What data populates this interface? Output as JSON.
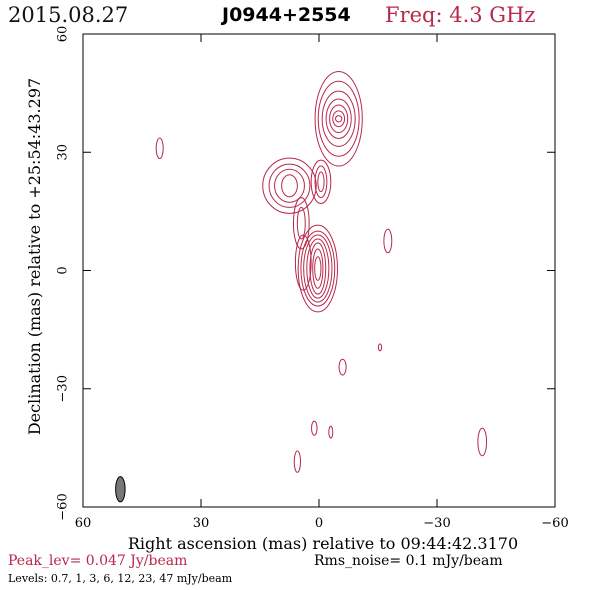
{
  "header": {
    "date": "2015.08.27",
    "source": "J0944+2554",
    "frequency": "Freq: 4.3 GHz"
  },
  "chart_data": {
    "type": "contour",
    "xlabel": "Right ascension (mas) relative to 09:44:42.3170",
    "ylabel": "Declination (mas) relative to +25:54:43.297",
    "xlim": [
      60,
      -60
    ],
    "ylim": [
      -60,
      60
    ],
    "x_ticks": [
      "60",
      "30",
      "0",
      "−30",
      "−60"
    ],
    "y_ticks": [
      "−60",
      "−30",
      "0",
      "30",
      "60"
    ],
    "contour_color": "#b8284a",
    "components": [
      {
        "x": 0.3,
        "y": 0.5,
        "rx": [
          0.8,
          1.3,
          2.0,
          2.8,
          3.6,
          4.3,
          5.0
        ],
        "ry": [
          3.0,
          5.0,
          6.5,
          7.5,
          8.5,
          9.5,
          11.0
        ]
      },
      {
        "x": -5.0,
        "y": 38.5,
        "rx": [
          0.8,
          1.5,
          2.3,
          3.2,
          4.2,
          5.2,
          6.0
        ],
        "ry": [
          0.8,
          2.0,
          3.5,
          5.0,
          7.0,
          9.5,
          12.0
        ]
      },
      {
        "x": 7.5,
        "y": 21.5,
        "rx": [
          2.0,
          3.8,
          5.2,
          6.8
        ],
        "ry": [
          2.8,
          4.2,
          5.5,
          7.0
        ]
      },
      {
        "x": -0.5,
        "y": 22.5,
        "rx": [
          0.8,
          1.5,
          2.5
        ],
        "ry": [
          2.5,
          4.0,
          5.5
        ]
      },
      {
        "x": 4.5,
        "y": 12.0,
        "rx": [
          1.0,
          2.0
        ],
        "ry": [
          4.0,
          6.5
        ]
      },
      {
        "x": 4.0,
        "y": 2.0,
        "rx": [
          2.0
        ],
        "ry": [
          7.0
        ]
      },
      {
        "x": 40.5,
        "y": 31.0,
        "rx": [
          0.9
        ],
        "ry": [
          2.6
        ]
      },
      {
        "x": -17.5,
        "y": 7.5,
        "rx": [
          1.0
        ],
        "ry": [
          3.0
        ]
      },
      {
        "x": -6.0,
        "y": -24.5,
        "rx": [
          0.9
        ],
        "ry": [
          2.0
        ]
      },
      {
        "x": -15.5,
        "y": -19.5,
        "rx": [
          0.4
        ],
        "ry": [
          0.9
        ]
      },
      {
        "x": 1.2,
        "y": -40.0,
        "rx": [
          0.7
        ],
        "ry": [
          1.8
        ]
      },
      {
        "x": -3.0,
        "y": -41.0,
        "rx": [
          0.5
        ],
        "ry": [
          1.5
        ]
      },
      {
        "x": 5.5,
        "y": -48.5,
        "rx": [
          0.8
        ],
        "ry": [
          2.7
        ]
      },
      {
        "x": -41.5,
        "y": -43.5,
        "rx": [
          1.1
        ],
        "ry": [
          3.5
        ]
      }
    ],
    "beam": {
      "x": 50.5,
      "y": -55.5,
      "rx": 1.2,
      "ry": 3.2,
      "color": "#777777"
    }
  },
  "footer": {
    "peak": "Peak_lev=  0.047 Jy/beam",
    "rms": "Rms_noise=  0.1 mJy/beam",
    "levels": "Levels: 0.7,    1,    3,    6,   12,   23,   47  mJy/beam"
  }
}
